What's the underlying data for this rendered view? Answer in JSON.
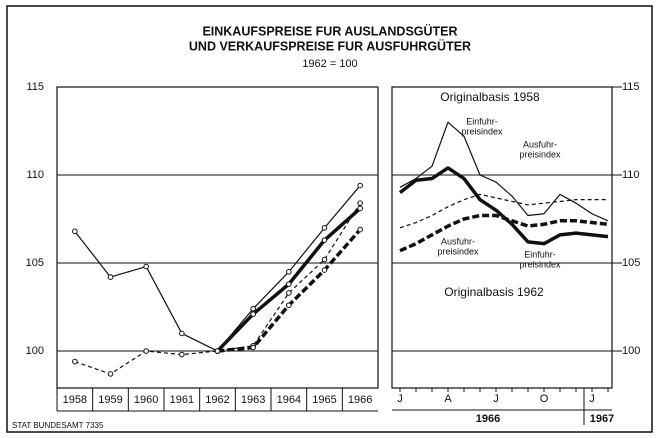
{
  "header": {
    "title": [
      "EINKAUFSPREISE FUR AUSLANDSGÜTER",
      "UND VERKAUFSPREISE FUR AUSFUHRGÜTER"
    ],
    "subtitle": "1962 = 100"
  },
  "footer": "STAT BUNDESAMT 7335",
  "chart_data": [
    {
      "type": "line",
      "categories": [
        "1958",
        "1959",
        "1960",
        "1961",
        "1962",
        "1963",
        "1964",
        "1965",
        "1966"
      ],
      "ylim": [
        97.9,
        115
      ],
      "yticks": [
        100,
        105,
        110,
        115
      ],
      "grid": true,
      "series": [
        {
          "color": "#111",
          "width": "thin",
          "dash": false,
          "markers": true,
          "values": [
            106.8,
            104.2,
            104.8,
            101.0,
            100.0,
            102.4,
            104.5,
            107.0,
            109.4
          ]
        },
        {
          "color": "#111",
          "width": "thin",
          "dash": true,
          "markers": true,
          "values": [
            99.4,
            98.7,
            100.0,
            99.8,
            100.0,
            100.3,
            103.3,
            105.2,
            108.4
          ]
        },
        {
          "color": "#111",
          "width": "thick",
          "dash": false,
          "markers": true,
          "values": [
            null,
            null,
            null,
            null,
            100.0,
            102.1,
            103.8,
            106.3,
            108.1
          ]
        },
        {
          "color": "#111",
          "width": "thick",
          "dash": true,
          "markers": true,
          "values": [
            null,
            null,
            null,
            null,
            100.0,
            100.2,
            102.6,
            104.6,
            106.9
          ]
        }
      ]
    },
    {
      "type": "line",
      "categories": [
        "J",
        null,
        null,
        "A",
        null,
        null,
        "J",
        null,
        null,
        "O",
        null,
        null,
        "J",
        null
      ],
      "years": [
        "1966",
        "1967"
      ],
      "ylim": [
        97.9,
        115
      ],
      "yticks": [
        100,
        105,
        110,
        115
      ],
      "grid": true,
      "annotations": [
        "Originalbasis 1958",
        "Einfuhr-",
        "preisindex",
        "Ausfuhr-",
        "preisindex",
        "Ausfuhr-",
        "preisindex",
        "Einfuhr-",
        "preisindex",
        "Originalbasis 1962"
      ],
      "series": [
        {
          "color": "#111",
          "width": "thin",
          "dash": false,
          "markers": false,
          "values": [
            109.3,
            109.8,
            110.5,
            113.0,
            112.2,
            110.0,
            109.6,
            108.8,
            107.7,
            107.8,
            108.9,
            108.4,
            107.8,
            107.4
          ]
        },
        {
          "color": "#111",
          "width": "thin",
          "dash": true,
          "markers": false,
          "values": [
            107.0,
            107.3,
            107.7,
            108.2,
            108.6,
            108.9,
            108.7,
            108.5,
            108.3,
            108.4,
            108.5,
            108.6,
            108.6,
            108.6
          ]
        },
        {
          "color": "#111",
          "width": "thick",
          "dash": false,
          "markers": false,
          "values": [
            109.0,
            109.7,
            109.8,
            110.4,
            109.8,
            108.6,
            108.0,
            107.2,
            106.2,
            106.1,
            106.6,
            106.7,
            106.6,
            106.5
          ]
        },
        {
          "color": "#111",
          "width": "thick",
          "dash": true,
          "markers": false,
          "values": [
            105.7,
            106.1,
            106.6,
            107.1,
            107.5,
            107.7,
            107.7,
            107.4,
            107.1,
            107.2,
            107.4,
            107.4,
            107.3,
            107.2
          ]
        }
      ]
    }
  ]
}
